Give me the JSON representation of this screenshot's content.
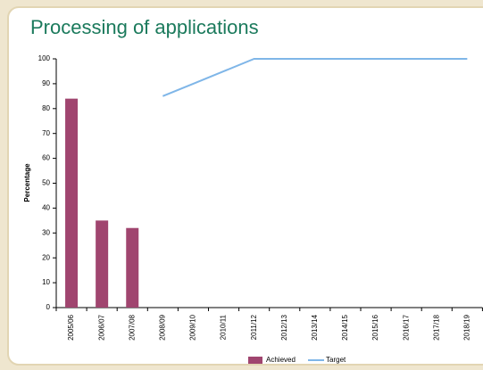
{
  "chart_data": {
    "type": "bar-line",
    "title": "Processing of applications",
    "y_label": "Percentage",
    "categories": [
      "2005/06",
      "2006/07",
      "2007/08",
      "2008/09",
      "2009/10",
      "2010/11",
      "2011/12",
      "2012/13",
      "2013/14",
      "2014/15",
      "2015/16",
      "2016/17",
      "2017/18",
      "2018/19"
    ],
    "series": [
      {
        "name": "Achieved",
        "type": "bar",
        "color": "#a0456f",
        "values": [
          84,
          35,
          32,
          null,
          null,
          null,
          null,
          null,
          null,
          null,
          null,
          null,
          null,
          null
        ]
      },
      {
        "name": "Target",
        "type": "line",
        "color": "#7fb6e8",
        "values": [
          null,
          null,
          null,
          85,
          90,
          95,
          100,
          100,
          100,
          100,
          100,
          100,
          100,
          100
        ]
      }
    ],
    "ylim": [
      0,
      100
    ],
    "yticks": [
      0,
      10,
      20,
      30,
      40,
      50,
      60,
      70,
      80,
      90,
      100
    ],
    "legend": "bottom"
  }
}
